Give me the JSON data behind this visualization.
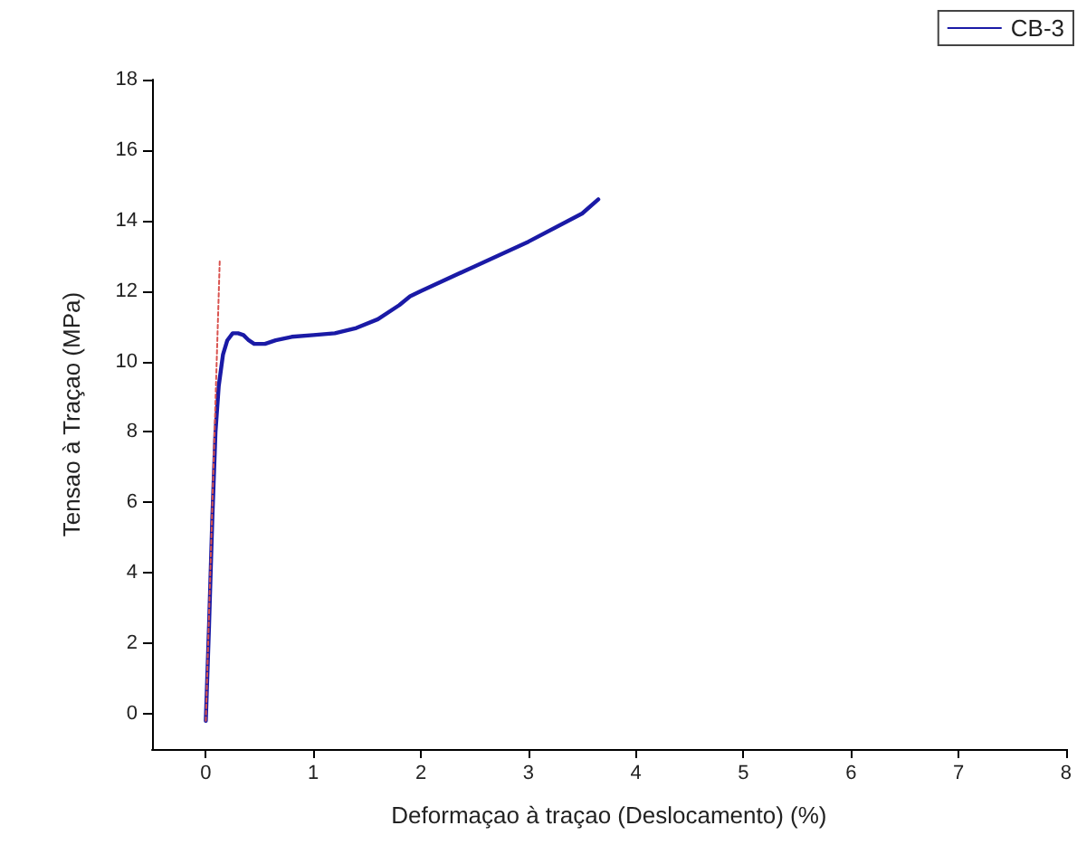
{
  "chart_data": {
    "type": "line",
    "xlabel": "Deformaçao à traçao (Deslocamento) (%)",
    "ylabel": "Tensao à Traçao (MPa)",
    "xlim": [
      -0.5,
      8
    ],
    "xticks": [
      0,
      1,
      2,
      3,
      4,
      5,
      6,
      7,
      8
    ],
    "ylim": [
      -1,
      18
    ],
    "yticks": [
      0,
      2,
      4,
      6,
      8,
      10,
      12,
      14,
      16,
      18
    ],
    "series": [
      {
        "name": "CB-3",
        "color": "#1a1aa6",
        "line_style": "solid",
        "x": [
          0,
          0.03,
          0.06,
          0.09,
          0.12,
          0.16,
          0.2,
          0.25,
          0.3,
          0.35,
          0.4,
          0.45,
          0.5,
          0.55,
          0.65,
          0.8,
          1.0,
          1.2,
          1.4,
          1.6,
          1.8,
          1.9,
          2.0,
          2.5,
          3.0,
          3.5,
          3.65
        ],
        "values": [
          -0.2,
          2.5,
          5.5,
          8,
          9.3,
          10.2,
          10.6,
          10.8,
          10.8,
          10.75,
          10.6,
          10.5,
          10.5,
          10.5,
          10.6,
          10.7,
          10.75,
          10.8,
          10.95,
          11.2,
          11.6,
          11.85,
          12.0,
          12.7,
          13.4,
          14.2,
          14.6
        ]
      },
      {
        "type": "line",
        "color": "#d9534f",
        "line_style": "dashed",
        "x": [
          0,
          0.13
        ],
        "values": [
          -0.2,
          12.9
        ]
      }
    ],
    "grid": false,
    "legend": "top right",
    "marker": "none"
  }
}
